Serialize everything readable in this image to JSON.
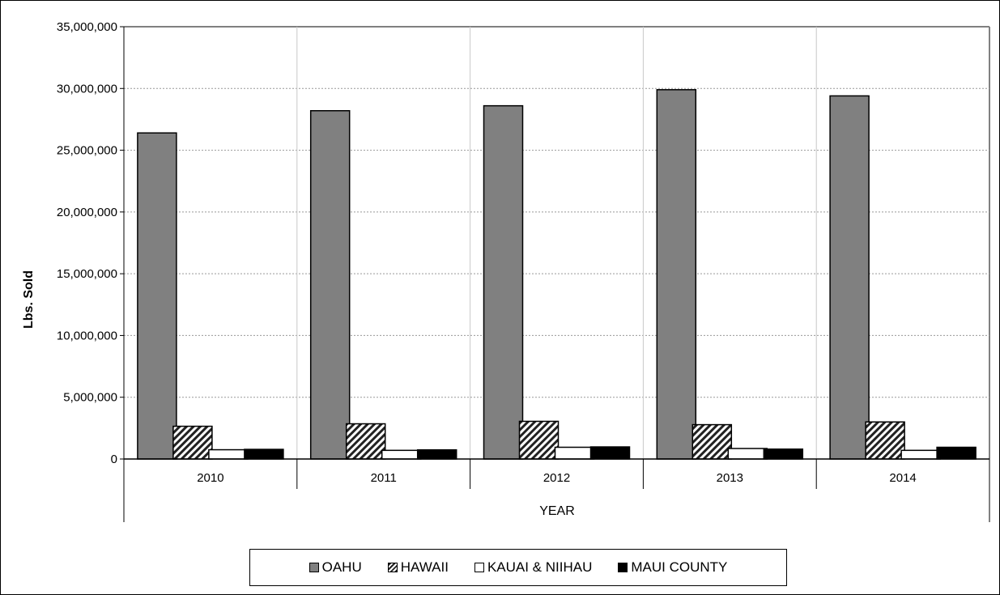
{
  "chart_data": {
    "type": "bar",
    "title": "",
    "xlabel": "YEAR",
    "ylabel": "Lbs. Sold",
    "categories": [
      "2010",
      "2011",
      "2012",
      "2013",
      "2014"
    ],
    "ylim": [
      0,
      35000000
    ],
    "yticks": [
      0,
      5000000,
      10000000,
      15000000,
      20000000,
      25000000,
      30000000,
      35000000
    ],
    "ytick_labels": [
      "0",
      "5,000,000",
      "10,000,000",
      "15,000,000",
      "20,000,000",
      "25,000,000",
      "30,000,000",
      "35,000,000"
    ],
    "grid": true,
    "legend_position": "bottom",
    "series": [
      {
        "name": "OAHU",
        "values": [
          26400000,
          28200000,
          28600000,
          29900000,
          29400000
        ],
        "color": "#808080",
        "pattern": "solid"
      },
      {
        "name": "HAWAII",
        "values": [
          2650000,
          2850000,
          3050000,
          2780000,
          3000000
        ],
        "color": "#ffffff",
        "pattern": "hatch"
      },
      {
        "name": "KAUAI & NIIHAU",
        "values": [
          750000,
          700000,
          950000,
          850000,
          700000
        ],
        "color": "#ffffff",
        "pattern": "solid"
      },
      {
        "name": "MAUI COUNTY",
        "values": [
          780000,
          740000,
          980000,
          800000,
          950000
        ],
        "color": "#000000",
        "pattern": "solid"
      }
    ]
  }
}
